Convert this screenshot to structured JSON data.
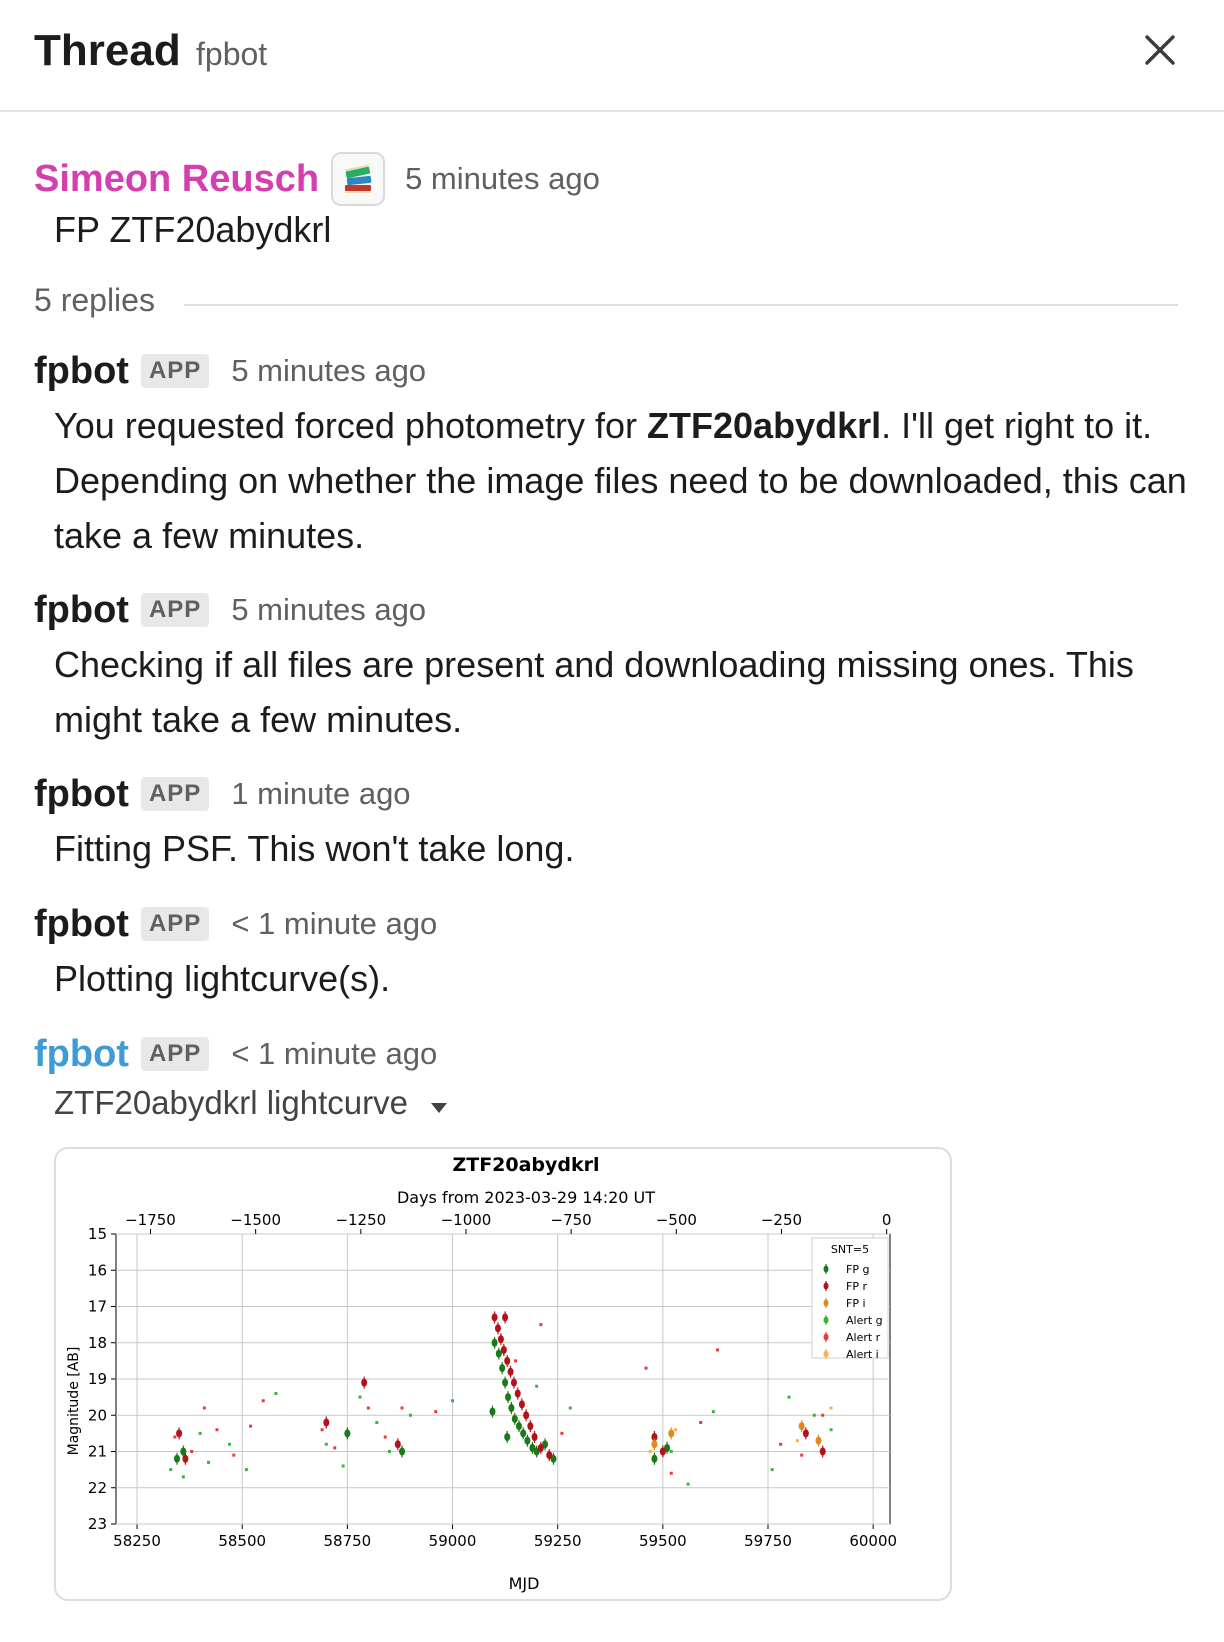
{
  "header": {
    "title": "Thread",
    "subtitle": "fpbot"
  },
  "parent_message": {
    "author": "Simeon Reusch",
    "emoji": "books-emoji",
    "time": "5 minutes ago",
    "text": "FP ZTF20abydkrl"
  },
  "replies": {
    "count_label": "5 replies"
  },
  "messages": [
    {
      "author": "fpbot",
      "badge": "APP",
      "time": "5 minutes ago",
      "text_before": "You requested forced photometry for ",
      "text_bold": "ZTF20abydkrl",
      "text_after": ". I'll get right to it. Depending on whether the image files need to be downloaded, this can take a few minutes."
    },
    {
      "author": "fpbot",
      "badge": "APP",
      "time": "5 minutes ago",
      "text": "Checking if all files are present and downloading missing ones. This might take a few minutes."
    },
    {
      "author": "fpbot",
      "badge": "APP",
      "time": "1 minute ago",
      "text": "Fitting PSF. This won't take long."
    },
    {
      "author": "fpbot",
      "badge": "APP",
      "time": "< 1 minute ago",
      "text": "Plotting lightcurve(s)."
    },
    {
      "author": "fpbot",
      "badge": "APP",
      "time": "< 1 minute ago",
      "attachment_title": "ZTF20abydkrl lightcurve"
    }
  ],
  "colors": {
    "author_pink": "#d43fb0",
    "author_blue": "#3e9bd6",
    "fp_g": "#1a7a1a",
    "fp_r": "#b3121a",
    "fp_i": "#e08a1c",
    "alert_g": "#3cb33c",
    "alert_r": "#e83b3b",
    "alert_i": "#f7b24a"
  },
  "chart_data": {
    "type": "scatter",
    "title": "ZTF20abydkrl",
    "top_axis_label": "Days from 2023-03-29 14:20 UT",
    "xlabel": "MJD",
    "ylabel": "Magnitude [AB]",
    "xlim": [
      58200,
      60040
    ],
    "ylim": [
      23,
      15
    ],
    "y_inverted": true,
    "x_ticks": [
      58250,
      58500,
      58750,
      59000,
      59250,
      59500,
      59750,
      60000
    ],
    "y_ticks": [
      15,
      16,
      17,
      18,
      19,
      20,
      21,
      22,
      23
    ],
    "top_ticks": [
      "−1750",
      "−1500",
      "−1250",
      "−1000",
      "−750",
      "−500",
      "−250",
      "0"
    ],
    "top_tick_mjd": [
      58282,
      58532,
      58782,
      59032,
      59282,
      59532,
      59782,
      60032
    ],
    "grid": true,
    "legend_title": "SNT=5",
    "legend_position": "top-right",
    "legend": [
      "FP g",
      "FP r",
      "FP i",
      "Alert g",
      "Alert r",
      "Alert i"
    ],
    "series": [
      {
        "name": "FP g",
        "points": [
          [
            59100,
            18.0
          ],
          [
            59110,
            18.3
          ],
          [
            59118,
            18.7
          ],
          [
            59125,
            19.1
          ],
          [
            59132,
            19.5
          ],
          [
            59140,
            19.8
          ],
          [
            59148,
            20.1
          ],
          [
            59158,
            20.3
          ],
          [
            59168,
            20.5
          ],
          [
            59178,
            20.7
          ],
          [
            59190,
            20.9
          ],
          [
            59200,
            21.0
          ],
          [
            59220,
            20.8
          ],
          [
            59240,
            21.2
          ],
          [
            59095,
            19.9
          ],
          [
            59130,
            20.6
          ],
          [
            58345,
            21.2
          ],
          [
            58360,
            21.0
          ],
          [
            58750,
            20.5
          ],
          [
            58880,
            21.0
          ],
          [
            59480,
            21.2
          ],
          [
            59510,
            20.9
          ]
        ]
      },
      {
        "name": "FP r",
        "points": [
          [
            59100,
            17.3
          ],
          [
            59108,
            17.6
          ],
          [
            59115,
            17.9
          ],
          [
            59122,
            18.2
          ],
          [
            59130,
            18.5
          ],
          [
            59138,
            18.8
          ],
          [
            59146,
            19.1
          ],
          [
            59155,
            19.4
          ],
          [
            59165,
            19.7
          ],
          [
            59175,
            20.0
          ],
          [
            59185,
            20.3
          ],
          [
            59195,
            20.6
          ],
          [
            59210,
            20.9
          ],
          [
            59230,
            21.1
          ],
          [
            59125,
            17.3
          ],
          [
            58350,
            20.5
          ],
          [
            58365,
            21.2
          ],
          [
            58700,
            20.2
          ],
          [
            58790,
            19.1
          ],
          [
            58870,
            20.8
          ],
          [
            59480,
            20.6
          ],
          [
            59500,
            21.0
          ],
          [
            59840,
            20.5
          ],
          [
            59880,
            21.0
          ]
        ]
      },
      {
        "name": "FP i",
        "points": [
          [
            59480,
            20.8
          ],
          [
            59520,
            20.5
          ],
          [
            59830,
            20.3
          ],
          [
            59870,
            20.7
          ]
        ]
      },
      {
        "name": "Alert g",
        "points": [
          [
            58330,
            21.5
          ],
          [
            58360,
            21.7
          ],
          [
            58400,
            20.5
          ],
          [
            58420,
            21.3
          ],
          [
            58470,
            20.8
          ],
          [
            58510,
            21.5
          ],
          [
            58580,
            19.4
          ],
          [
            58700,
            20.8
          ],
          [
            58740,
            21.4
          ],
          [
            58780,
            19.5
          ],
          [
            58820,
            20.2
          ],
          [
            58850,
            21.0
          ],
          [
            58900,
            20.0
          ],
          [
            59000,
            19.6
          ],
          [
            59200,
            19.2
          ],
          [
            59280,
            19.8
          ],
          [
            59520,
            21.0
          ],
          [
            59560,
            21.9
          ],
          [
            59620,
            19.9
          ],
          [
            59760,
            21.5
          ],
          [
            59800,
            19.5
          ],
          [
            59860,
            20.0
          ],
          [
            59900,
            20.4
          ]
        ]
      },
      {
        "name": "Alert r",
        "points": [
          [
            58340,
            20.6
          ],
          [
            58380,
            21.0
          ],
          [
            58410,
            19.8
          ],
          [
            58440,
            20.4
          ],
          [
            58480,
            21.1
          ],
          [
            58520,
            20.3
          ],
          [
            58550,
            19.6
          ],
          [
            58690,
            20.4
          ],
          [
            58720,
            20.9
          ],
          [
            58800,
            19.8
          ],
          [
            58840,
            20.6
          ],
          [
            58880,
            19.8
          ],
          [
            58960,
            19.9
          ],
          [
            59150,
            18.5
          ],
          [
            59210,
            17.5
          ],
          [
            59260,
            20.5
          ],
          [
            59460,
            18.7
          ],
          [
            59520,
            21.6
          ],
          [
            59590,
            20.2
          ],
          [
            59630,
            18.2
          ],
          [
            59780,
            20.8
          ],
          [
            59830,
            21.1
          ],
          [
            59880,
            20.0
          ]
        ]
      },
      {
        "name": "Alert i",
        "points": [
          [
            59470,
            21.0
          ],
          [
            59530,
            20.4
          ],
          [
            59820,
            20.7
          ],
          [
            59900,
            19.8
          ]
        ]
      }
    ]
  }
}
